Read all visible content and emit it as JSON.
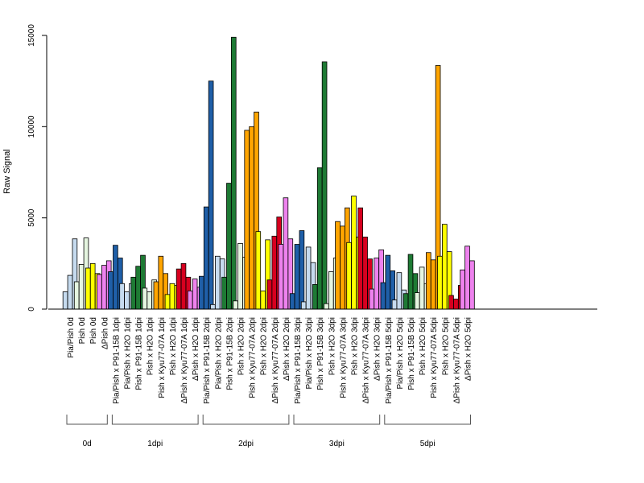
{
  "chart_data": {
    "type": "bar",
    "ylabel": "Raw Signal",
    "ylim": [
      0,
      15000
    ],
    "yticks": [
      0,
      5000,
      10000,
      15000
    ],
    "grid": false,
    "categories": [
      "Pia/Pish 0d",
      "Pish 0d",
      "Pish 0d",
      "ΔPish 0d",
      "Pia/Pish x P91-15B 1dpi",
      "Pia/Pish x H2O 1dpi",
      "Pish x P91-15B 1dpi",
      "Pish x H2O 1dpi",
      "Pish x Kyu77-07A 1dpi",
      "Pish x H2O 1dpi",
      "ΔPish x Kyu77-07A 1dpi",
      "ΔPish x H2O 1dpi",
      "Pia/Pish x P91-15B 2dpi",
      "Pia/Pish x H2O 2dpi",
      "Pish x P91-15B 2dpi",
      "Pish x H2O 2dpi",
      "Pish x Kyu77-07A 2dpi",
      "Pish x H2O 2dpi",
      "ΔPish x Kyu77-07A 2dpi",
      "ΔPish x H2O 2dpi",
      "Pia/Pish x P91-15B 3dpi",
      "Pia/Pish x H2O 3dpi",
      "Pish x P91-15B 3dpi",
      "Pish x H2O 3dpi",
      "Pish x Kyu77-07A 3dpi",
      "Pish x H2O 3dpi",
      "ΔPish x Kyu77-07A 3dpi",
      "ΔPish x H2O 3dpi",
      "Pia/Pish x P91-15B 5dpi",
      "Pia/Pish x H2O 5dpi",
      "Pish x P91-15B 5dpi",
      "Pish x H2O 5dpi",
      "Pish x Kyu77-07A 5dpi",
      "Pish x H2O 5dpi",
      "ΔPish x Kyu77-07A 5dpi",
      "ΔPish x H2O 5dpi"
    ],
    "colors": [
      "#c6dbef",
      "#e5f5e0",
      "#ffff00",
      "#ee82ee",
      "#1f5fa8",
      "#c6dbef",
      "#1e7a34",
      "#e5f5e0",
      "#ffa500",
      "#ffff00",
      "#d7001f",
      "#ee82ee",
      "#1f5fa8",
      "#c6dbef",
      "#1e7a34",
      "#e5f5e0",
      "#ffa500",
      "#ffff00",
      "#d7001f",
      "#ee82ee",
      "#1f5fa8",
      "#c6dbef",
      "#1e7a34",
      "#e5f5e0",
      "#ffa500",
      "#ffff00",
      "#d7001f",
      "#ee82ee",
      "#1f5fa8",
      "#c6dbef",
      "#1e7a34",
      "#e5f5e0",
      "#ffa500",
      "#ffff00",
      "#d7001f",
      "#ee82ee"
    ],
    "values": [
      [
        950,
        1850,
        3850
      ],
      [
        1500,
        2450,
        3900
      ],
      [
        2250,
        2500,
        1950
      ],
      [
        1900,
        2400,
        2650
      ],
      [
        2050,
        3500,
        2800
      ],
      [
        1400,
        950,
        1400
      ],
      [
        1750,
        2350,
        2950
      ],
      [
        1150,
        950,
        1600
      ],
      [
        1500,
        2900,
        1950
      ],
      [
        800,
        1400,
        1300
      ],
      [
        2200,
        2500,
        1750
      ],
      [
        1000,
        1650,
        1200
      ],
      [
        1800,
        5600,
        12500
      ],
      [
        250,
        2900,
        2750
      ],
      [
        1750,
        6900,
        14900
      ],
      [
        450,
        3600,
        2850
      ],
      [
        9800,
        10000,
        10800
      ],
      [
        4250,
        1000,
        3800
      ],
      [
        1600,
        4000,
        5050
      ],
      [
        3550,
        6100,
        3850
      ],
      [
        850,
        3550,
        4300
      ],
      [
        400,
        3400,
        2550
      ],
      [
        1350,
        7750,
        13550
      ],
      [
        300,
        2050,
        2800
      ],
      [
        4800,
        4550,
        5550
      ],
      [
        3650,
        6200,
        3950
      ],
      [
        5550,
        3950,
        2750
      ],
      [
        1100,
        2800,
        3250
      ],
      [
        1450,
        2950,
        2100
      ],
      [
        500,
        2000,
        1050
      ],
      [
        850,
        3000,
        1950
      ],
      [
        900,
        2300,
        1400
      ],
      [
        3100,
        2700,
        13350
      ],
      [
        2900,
        4650,
        3150
      ],
      [
        750,
        550,
        1300
      ],
      [
        2150,
        3450,
        2650
      ]
    ],
    "groups": [
      {
        "label": "0d",
        "from": 0,
        "to": 3
      },
      {
        "label": "1dpi",
        "from": 4,
        "to": 11
      },
      {
        "label": "2dpi",
        "from": 12,
        "to": 19
      },
      {
        "label": "3dpi",
        "from": 20,
        "to": 27
      },
      {
        "label": "5dpi",
        "from": 28,
        "to": 35
      }
    ]
  }
}
